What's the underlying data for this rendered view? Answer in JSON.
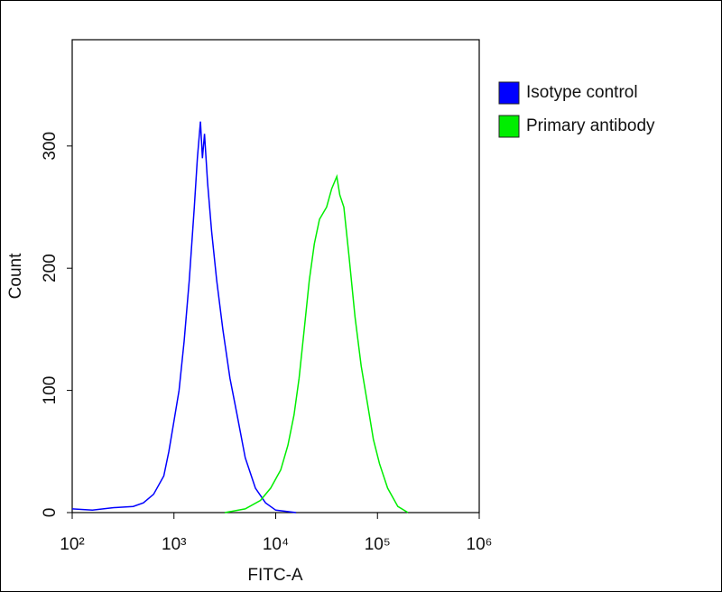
{
  "chart_data": {
    "type": "line",
    "xlabel": "FITC-A",
    "ylabel": "Count",
    "xscale": "log",
    "xlim": [
      100,
      1000000
    ],
    "xticks": [
      {
        "value": 100,
        "label": "10²"
      },
      {
        "value": 1000,
        "label": "10³"
      },
      {
        "value": 10000,
        "label": "10⁴"
      },
      {
        "value": 100000,
        "label": "10⁵"
      },
      {
        "value": 1000000,
        "label": "10⁶"
      }
    ],
    "ylim": [
      0,
      387
    ],
    "yticks": [
      0,
      100,
      200,
      300
    ],
    "legend": "upper right",
    "series": [
      {
        "name": "Isotype control",
        "color": "#0000ff",
        "x": [
          100,
          158,
          251,
          398,
          501,
          631,
          794,
          891,
          1000,
          1122,
          1259,
          1413,
          1585,
          1698,
          1820,
          1905,
          1995,
          2138,
          2344,
          2630,
          3020,
          3548,
          4169,
          5012,
          6310,
          7943,
          10000,
          15849
        ],
        "values": [
          3,
          2,
          4,
          5,
          8,
          15,
          30,
          50,
          75,
          100,
          140,
          190,
          250,
          290,
          320,
          290,
          310,
          270,
          230,
          190,
          150,
          110,
          80,
          45,
          20,
          8,
          2,
          0
        ]
      },
      {
        "name": "Primary antibody",
        "color": "#00ee00",
        "x": [
          3162,
          5012,
          7079,
          8913,
          11220,
          13183,
          15136,
          16982,
          19055,
          21380,
          23988,
          26915,
          31623,
          35481,
          39811,
          42658,
          46774,
          52481,
          60256,
          69183,
          79433,
          91201,
          104713,
          125893,
          158489,
          199526
        ],
        "values": [
          0,
          3,
          10,
          20,
          35,
          55,
          80,
          110,
          150,
          190,
          220,
          240,
          250,
          265,
          275,
          260,
          250,
          210,
          160,
          120,
          90,
          60,
          40,
          20,
          5,
          0
        ]
      }
    ]
  }
}
